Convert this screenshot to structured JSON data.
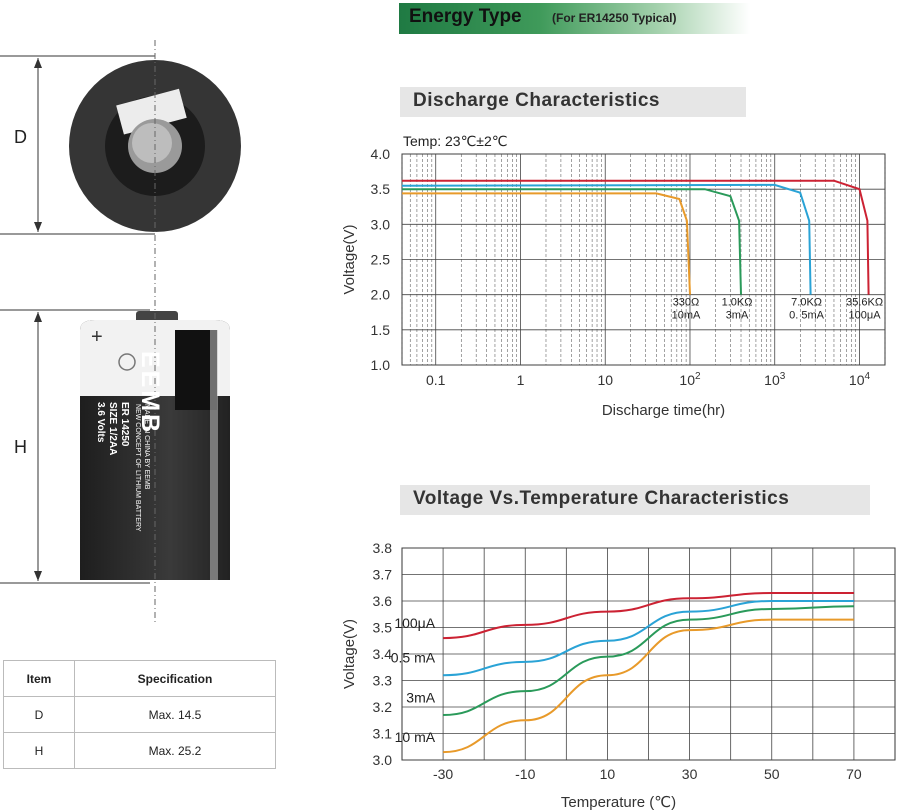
{
  "banner": {
    "title": "Energy Type",
    "subtitle": "(For ER14250 Typical)"
  },
  "dimensions": {
    "d_label": "D",
    "h_label": "H"
  },
  "battery": {
    "brand": "EEMB",
    "plus": "+",
    "lines": [
      "ER 14250",
      "SIZE 1/2AA",
      "3.6 Volts"
    ],
    "lines2": [
      "MADE IN CHINA BY EEMB",
      "NEW CONCEPT OF LITHIUM BATTERY"
    ]
  },
  "spec_table": {
    "headers": [
      "Item",
      "Specification"
    ],
    "rows": [
      [
        "D",
        "Max. 14.5"
      ],
      [
        "H",
        "Max. 25.2"
      ]
    ]
  },
  "chart_data": [
    {
      "type": "line",
      "title": "Discharge Characteristics",
      "subtitle": "Temp: 23℃±2℃",
      "xlabel": "Discharge time(hr)",
      "ylabel": "Voltage(V)",
      "x_scale": "log",
      "xlim": [
        0.04,
        20000
      ],
      "ylim": [
        1.0,
        4.0
      ],
      "x_ticks": [
        "0.1",
        "1",
        "10",
        "10^2",
        "10^3",
        "10^4"
      ],
      "y_ticks": [
        "1.0",
        "1.5",
        "2.0",
        "2.5",
        "3.0",
        "3.5",
        "4.0"
      ],
      "grid": true,
      "series": [
        {
          "name": "330Ω 10mA",
          "label1": "330Ω",
          "label2": "10mA",
          "color": "#e89a2a",
          "points": [
            [
              0.04,
              3.44
            ],
            [
              40,
              3.44
            ],
            [
              75,
              3.36
            ],
            [
              92,
              3.05
            ],
            [
              100,
              2.0
            ]
          ]
        },
        {
          "name": "1.0KΩ 3mA",
          "label1": "1.0KΩ",
          "label2": "3mA",
          "color": "#2a9a5a",
          "points": [
            [
              0.04,
              3.5
            ],
            [
              150,
              3.5
            ],
            [
              300,
              3.4
            ],
            [
              380,
              3.05
            ],
            [
              400,
              2.0
            ]
          ]
        },
        {
          "name": "7.0KΩ 0.5mA",
          "label1": "7.0KΩ",
          "label2": "0. 5mA",
          "color": "#2aa3d6",
          "points": [
            [
              0.04,
              3.55
            ],
            [
              1000,
              3.56
            ],
            [
              2000,
              3.45
            ],
            [
              2550,
              3.05
            ],
            [
              2650,
              2.0
            ]
          ]
        },
        {
          "name": "35.6KΩ 100μA",
          "label1": "35.6KΩ",
          "label2": "100μA",
          "color": "#cc2233",
          "points": [
            [
              0.04,
              3.62
            ],
            [
              5000,
              3.62
            ],
            [
              10000,
              3.5
            ],
            [
              12400,
              3.05
            ],
            [
              12800,
              2.0
            ]
          ]
        }
      ]
    },
    {
      "type": "line",
      "title": "Voltage Vs.Temperature Characteristics",
      "xlabel": "Temperature (℃)",
      "ylabel": "Voltage(V)",
      "xlim": [
        -40,
        80
      ],
      "ylim": [
        3.0,
        3.8
      ],
      "x_ticks": [
        "-30",
        "-10",
        "10",
        "30",
        "50",
        "70"
      ],
      "y_ticks": [
        "3.0",
        "3.1",
        "3.2",
        "3.3",
        "3.4",
        "3.5",
        "3.6",
        "3.7",
        "3.8"
      ],
      "grid": true,
      "series": [
        {
          "name": "100μA",
          "color": "#cc2233",
          "points": [
            [
              -30,
              3.46
            ],
            [
              -10,
              3.51
            ],
            [
              10,
              3.56
            ],
            [
              30,
              3.61
            ],
            [
              50,
              3.63
            ],
            [
              70,
              3.63
            ]
          ]
        },
        {
          "name": "0.5 mA",
          "color": "#2aa3d6",
          "points": [
            [
              -30,
              3.32
            ],
            [
              -10,
              3.37
            ],
            [
              10,
              3.45
            ],
            [
              30,
              3.56
            ],
            [
              50,
              3.6
            ],
            [
              70,
              3.6
            ]
          ]
        },
        {
          "name": "3mA",
          "color": "#2a9a5a",
          "points": [
            [
              -30,
              3.17
            ],
            [
              -10,
              3.26
            ],
            [
              10,
              3.39
            ],
            [
              30,
              3.53
            ],
            [
              50,
              3.57
            ],
            [
              70,
              3.58
            ]
          ]
        },
        {
          "name": "10 mA",
          "color": "#e89a2a",
          "points": [
            [
              -30,
              3.03
            ],
            [
              -10,
              3.15
            ],
            [
              10,
              3.32
            ],
            [
              30,
              3.49
            ],
            [
              50,
              3.53
            ],
            [
              70,
              3.53
            ]
          ]
        }
      ]
    }
  ]
}
